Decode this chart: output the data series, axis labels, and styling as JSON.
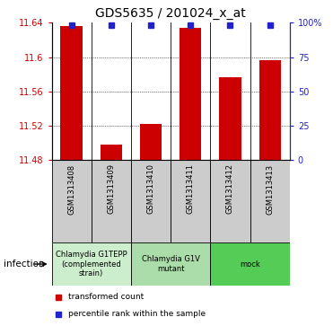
{
  "title": "GDS5635 / 201024_x_at",
  "samples": [
    "GSM1313408",
    "GSM1313409",
    "GSM1313410",
    "GSM1313411",
    "GSM1313412",
    "GSM1313413"
  ],
  "bar_values": [
    11.636,
    11.498,
    11.522,
    11.634,
    11.576,
    11.596
  ],
  "percentile_values": [
    98.5,
    98.5,
    98.5,
    98.5,
    98.5,
    98.5
  ],
  "ylim_left": [
    11.48,
    11.64
  ],
  "ylim_right": [
    0,
    100
  ],
  "yticks_left": [
    11.48,
    11.52,
    11.56,
    11.6,
    11.64
  ],
  "yticks_right": [
    0,
    25,
    50,
    75,
    100
  ],
  "ytick_labels_left": [
    "11.48",
    "11.52",
    "11.56",
    "11.6",
    "11.64"
  ],
  "ytick_labels_right": [
    "0",
    "25",
    "50",
    "75",
    "100%"
  ],
  "bar_color": "#cc0000",
  "dot_color": "#2222cc",
  "bar_bottom": 11.48,
  "bar_width": 0.55,
  "groups": [
    {
      "label": "Chlamydia G1TEPP\n(complemented\nstrain)",
      "color": "#cceecc",
      "start": 0,
      "end": 2
    },
    {
      "label": "Chlamydia G1V\nmutant",
      "color": "#aaddaa",
      "start": 2,
      "end": 4
    },
    {
      "label": "mock",
      "color": "#55cc55",
      "start": 4,
      "end": 6
    }
  ],
  "infection_label": "infection",
  "legend_items": [
    {
      "color": "#cc0000",
      "marker": "s",
      "label": "transformed count"
    },
    {
      "color": "#2222cc",
      "marker": "s",
      "label": "percentile rank within the sample"
    }
  ],
  "title_fontsize": 10,
  "tick_fontsize": 7,
  "sample_fontsize": 6,
  "group_fontsize": 6,
  "legend_fontsize": 6.5,
  "axis_color_left": "#cc0000",
  "axis_color_right": "#2222cc",
  "gridline_color": "black",
  "gridline_lw": 0.5,
  "gridline_style": "dotted"
}
